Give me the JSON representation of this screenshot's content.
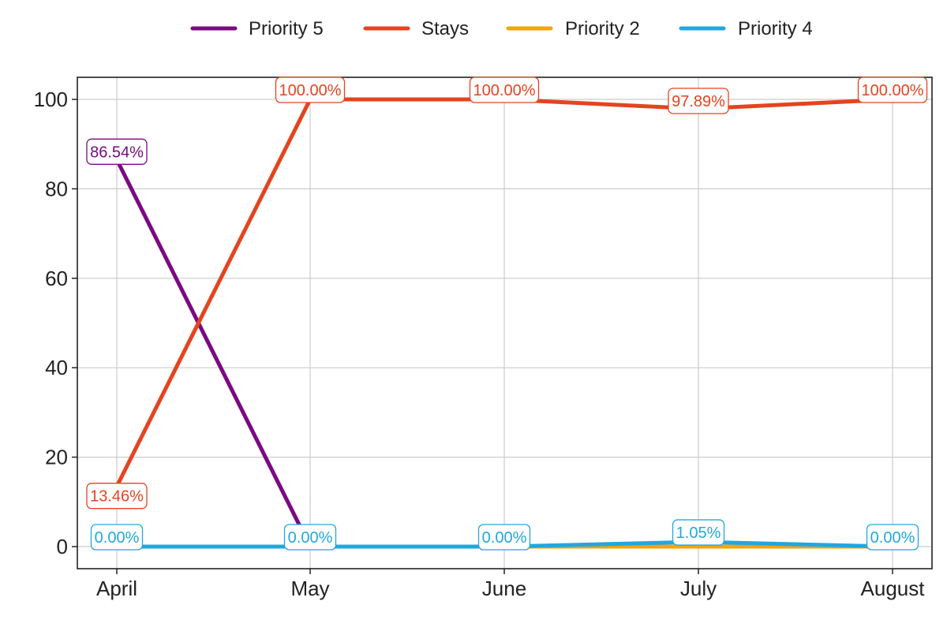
{
  "chart_data": {
    "type": "line",
    "categories": [
      "April",
      "May",
      "June",
      "July",
      "August"
    ],
    "ylim": [
      -5,
      105
    ],
    "yticks": [
      0,
      20,
      40,
      60,
      80,
      100
    ],
    "grid": true,
    "legend_position": "top-center",
    "series": [
      {
        "name": "Priority 5",
        "color": "#7a0a82",
        "values": [
          86.54,
          0.0,
          0.0,
          0.0,
          0.0
        ],
        "labels": [
          "86.54%",
          null,
          null,
          null,
          null
        ]
      },
      {
        "name": "Stays",
        "color": "#e4441f",
        "values": [
          13.46,
          100.0,
          100.0,
          97.89,
          100.0
        ],
        "labels": [
          "13.46%",
          "100.00%",
          "100.00%",
          "97.89%",
          "100.00%"
        ]
      },
      {
        "name": "Priority 2",
        "color": "#f5a40c",
        "values": [
          0.0,
          0.0,
          0.0,
          0.0,
          0.0
        ],
        "labels": [
          null,
          null,
          null,
          null,
          null
        ]
      },
      {
        "name": "Priority 4",
        "color": "#22a7dd",
        "values": [
          0.0,
          0.0,
          0.0,
          1.05,
          0.0
        ],
        "labels": [
          "0.00%",
          "0.00%",
          "0.00%",
          "1.05%",
          "0.00%"
        ]
      }
    ]
  }
}
